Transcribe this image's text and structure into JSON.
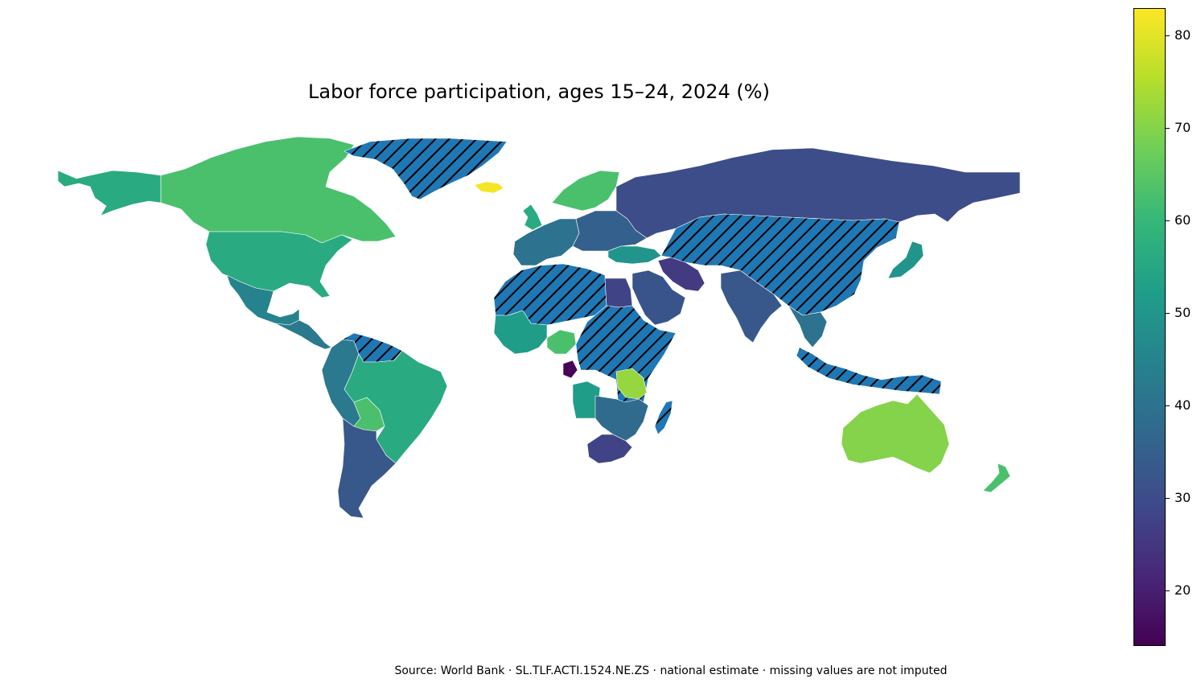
{
  "title": "Labor force participation, ages 15–24, 2024 (%)",
  "source_note": "Source: World Bank · SL.TLF.ACTI.1524.NE.ZS · national estimate · missing values are not imputed",
  "colorbar": {
    "colormap": "viridis",
    "min": 14,
    "max": 83,
    "ticks": [
      "20",
      "30",
      "40",
      "50",
      "60",
      "70",
      "80"
    ],
    "stops": [
      "#440154",
      "#482878",
      "#3e4a89",
      "#31688e",
      "#26828e",
      "#1f9e89",
      "#35b779",
      "#6ece58",
      "#b5de2b",
      "#fde725"
    ]
  },
  "missing_style": {
    "fill": "#1f77b4",
    "hatch": "#000000"
  },
  "regions": [
    {
      "name": "Alaska",
      "value": 56
    },
    {
      "name": "Canada",
      "value": 63
    },
    {
      "name": "United States",
      "value": 56
    },
    {
      "name": "Mexico",
      "value": 45
    },
    {
      "name": "Greenland",
      "value": null
    },
    {
      "name": "Iceland",
      "value": 82
    },
    {
      "name": "Central America",
      "value": 42
    },
    {
      "name": "Colombia & Peru",
      "value": 42
    },
    {
      "name": "Venezuela & Guianas",
      "value": null
    },
    {
      "name": "Brazil",
      "value": 56
    },
    {
      "name": "Bolivia",
      "value": 63
    },
    {
      "name": "Argentina & Chile",
      "value": 33
    },
    {
      "name": "Scandinavia",
      "value": 63
    },
    {
      "name": "United Kingdom",
      "value": 56
    },
    {
      "name": "Western Europe",
      "value": 40
    },
    {
      "name": "Eastern Europe",
      "value": 35
    },
    {
      "name": "Russia",
      "value": 30
    },
    {
      "name": "Turkey",
      "value": 50
    },
    {
      "name": "Iran",
      "value": 26
    },
    {
      "name": "Saudi Arabia",
      "value": 32
    },
    {
      "name": "Central Asia & China",
      "value": null
    },
    {
      "name": "India",
      "value": 33
    },
    {
      "name": "Southeast Asia",
      "value": 40
    },
    {
      "name": "Indonesia & PNG",
      "value": null
    },
    {
      "name": "Japan",
      "value": 50
    },
    {
      "name": "North Africa",
      "value": null
    },
    {
      "name": "West Africa",
      "value": 52
    },
    {
      "name": "Nigeria",
      "value": 63
    },
    {
      "name": "Gabon",
      "value": 15
    },
    {
      "name": "Egypt",
      "value": 28
    },
    {
      "name": "East Africa",
      "value": null
    },
    {
      "name": "Tanzania",
      "value": 72
    },
    {
      "name": "Angola",
      "value": 52
    },
    {
      "name": "Zambia & Mozambique",
      "value": 38
    },
    {
      "name": "South Africa",
      "value": 28
    },
    {
      "name": "Madagascar",
      "value": null
    },
    {
      "name": "Australia",
      "value": 70
    },
    {
      "name": "New Zealand",
      "value": 63
    }
  ]
}
